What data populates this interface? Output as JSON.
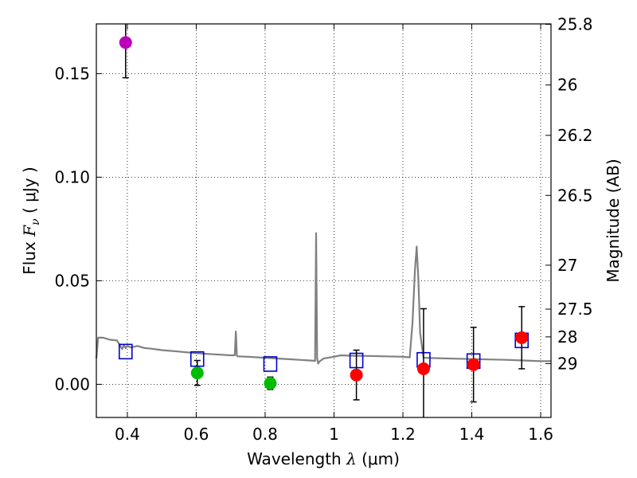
{
  "chart_data": {
    "type": "scatter",
    "xlabel": "Wavelength  λ (μm)",
    "ylabel": "Flux  Fν  ( μJy )",
    "ylabel_parts": {
      "prefix": "Flux  ",
      "symbol": "F",
      "subscript": "ν",
      "units": "  ( μJy )"
    },
    "xlabel_parts": {
      "prefix": "Wavelength  ",
      "symbol": "λ",
      "units": " (μm)"
    },
    "right_ylabel": "Magnitude (AB)",
    "xlim": [
      0.31,
      1.63
    ],
    "ylim": [
      -0.016,
      0.174
    ],
    "grid": true,
    "x_ticks": [
      0.4,
      0.6,
      0.8,
      1.0,
      1.2,
      1.4,
      1.6
    ],
    "x_tick_labels": [
      "0.4",
      "0.6",
      "0.8",
      "1",
      "1.2",
      "1.4",
      "1.6"
    ],
    "y_ticks": [
      0.0,
      0.05,
      0.1,
      0.15
    ],
    "y_tick_labels": [
      "0.00",
      "0.05",
      "0.10",
      "0.15"
    ],
    "right_ticks": [
      {
        "label": "25.8",
        "flux": 0.1738
      },
      {
        "label": "26",
        "flux": 0.1445
      },
      {
        "label": "26.2",
        "flux": 0.1202
      },
      {
        "label": "26.5",
        "flux": 0.0912
      },
      {
        "label": "27",
        "flux": 0.0575
      },
      {
        "label": "27.5",
        "flux": 0.0363
      },
      {
        "label": "28",
        "flux": 0.0229
      },
      {
        "label": "29",
        "flux": 0.01
      }
    ],
    "series": [
      {
        "name": "model-spectrum",
        "kind": "line",
        "color": "#808080",
        "x": [
          0.31,
          0.315,
          0.33,
          0.35,
          0.37,
          0.385,
          0.39,
          0.395,
          0.4,
          0.41,
          0.43,
          0.45,
          0.47,
          0.5,
          0.55,
          0.6,
          0.65,
          0.7,
          0.712,
          0.715,
          0.718,
          0.72,
          0.75,
          0.8,
          0.85,
          0.9,
          0.93,
          0.945,
          0.948,
          0.951,
          0.954,
          0.958,
          0.97,
          1.0,
          1.02,
          1.05,
          1.1,
          1.15,
          1.2,
          1.22,
          1.228,
          1.235,
          1.24,
          1.245,
          1.25,
          1.26,
          1.3,
          1.35,
          1.4,
          1.45,
          1.5,
          1.55,
          1.6,
          1.63
        ],
        "y": [
          0.0125,
          0.0225,
          0.0225,
          0.0215,
          0.0212,
          0.017,
          0.019,
          0.0175,
          0.0185,
          0.0178,
          0.0185,
          0.0175,
          0.0172,
          0.0165,
          0.0158,
          0.015,
          0.0145,
          0.014,
          0.014,
          0.0255,
          0.0138,
          0.0135,
          0.0133,
          0.0128,
          0.0123,
          0.0118,
          0.0115,
          0.0113,
          0.073,
          0.0125,
          0.01,
          0.011,
          0.0125,
          0.0133,
          0.014,
          0.0138,
          0.0137,
          0.0135,
          0.0133,
          0.013,
          0.03,
          0.055,
          0.0665,
          0.05,
          0.025,
          0.0128,
          0.0126,
          0.0124,
          0.0122,
          0.012,
          0.0118,
          0.0115,
          0.0112,
          0.0112
        ]
      },
      {
        "name": "model-photometry",
        "kind": "square",
        "color": "#0000cc",
        "x": [
          0.395,
          0.603,
          0.815,
          1.065,
          1.26,
          1.405,
          1.545
        ],
        "y": [
          0.0158,
          0.0122,
          0.0098,
          0.0115,
          0.0118,
          0.0112,
          0.0212
        ]
      },
      {
        "name": "observed-u",
        "kind": "circle",
        "color": "#bb00bb",
        "x": [
          0.395
        ],
        "y": [
          0.165
        ],
        "err": [
          0.017
        ]
      },
      {
        "name": "observed-optical",
        "kind": "circle",
        "color": "#00bb00",
        "x": [
          0.603,
          0.815
        ],
        "y": [
          0.0055,
          0.0005
        ],
        "err": [
          0.006,
          0.003
        ]
      },
      {
        "name": "observed-nir",
        "kind": "circle",
        "color": "#ff0000",
        "x": [
          1.065,
          1.26,
          1.405,
          1.545
        ],
        "y": [
          0.0045,
          0.0075,
          0.0095,
          0.0225
        ],
        "err": [
          0.012,
          0.029,
          0.018,
          0.015
        ]
      }
    ]
  }
}
